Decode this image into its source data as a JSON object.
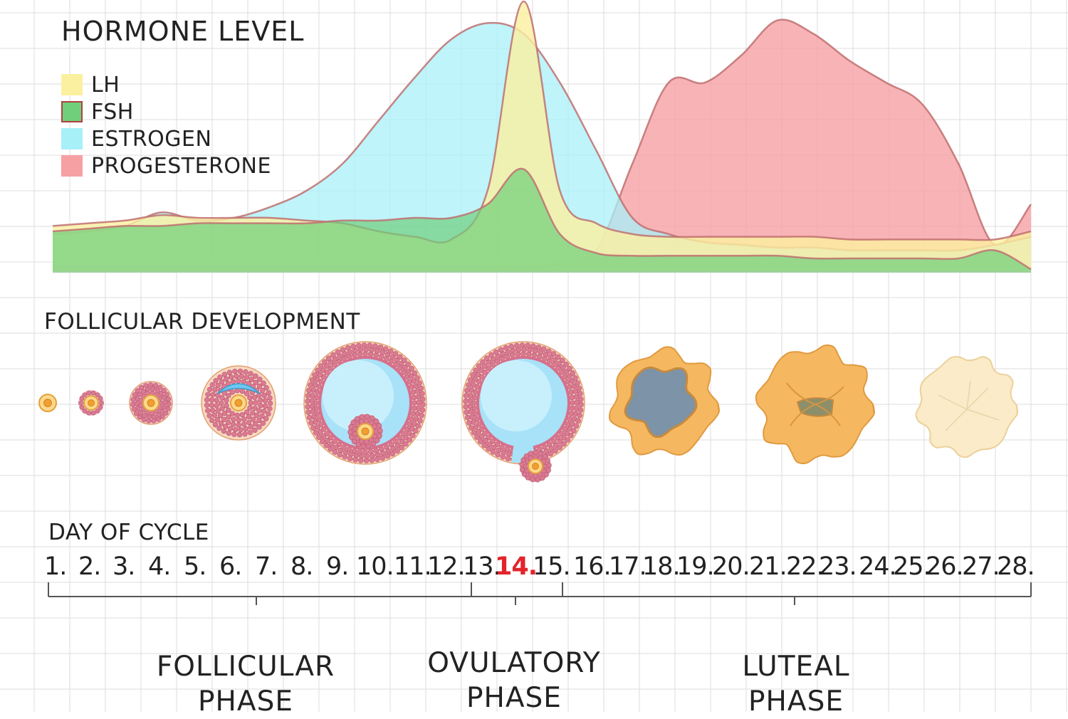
{
  "title": "HORMONE LEVEL",
  "legend": [
    {
      "label": "LH",
      "color": "#fbf0a0",
      "border": "#fbf0a0"
    },
    {
      "label": "FSH",
      "color": "#6fcf7a",
      "border": "#b04040"
    },
    {
      "label": "ESTROGEN",
      "color": "#a8f0f8",
      "border": "#a8f0f8"
    },
    {
      "label": "PROGESTERONE",
      "color": "#f6a0a4",
      "border": "#f6a0a4"
    }
  ],
  "colors": {
    "lh": "#fbf0a0",
    "fsh": "#6fcf7a",
    "estrogen": "#a8f0f8",
    "progesterone": "#f6a0a4",
    "outline": "#c07070",
    "highlight": "#e3242b",
    "grid": "#dddddd"
  },
  "chart_data": {
    "type": "area",
    "x": [
      1,
      2,
      3,
      4,
      5,
      6,
      7,
      8,
      9,
      10,
      11,
      12,
      13,
      14,
      15,
      16,
      17,
      18,
      19,
      20,
      21,
      22,
      23,
      24,
      25,
      26,
      27,
      28
    ],
    "series": [
      {
        "name": "LH",
        "values": [
          17,
          18,
          19,
          21,
          20,
          20,
          20,
          19,
          18,
          15,
          13,
          12,
          30,
          100,
          30,
          18,
          14,
          13,
          13,
          13,
          13,
          13,
          12,
          12,
          12,
          12,
          12,
          15
        ]
      },
      {
        "name": "FSH",
        "values": [
          15,
          16,
          17,
          17,
          18,
          18,
          18,
          18,
          19,
          19,
          20,
          20,
          25,
          38,
          14,
          7,
          6,
          6,
          6,
          6,
          6,
          5,
          5,
          5,
          5,
          5,
          8,
          1
        ]
      },
      {
        "name": "ESTROGEN",
        "values": [
          14,
          15,
          17,
          22,
          19,
          20,
          24,
          30,
          40,
          56,
          72,
          86,
          92,
          88,
          70,
          45,
          20,
          14,
          11,
          10,
          9,
          9,
          8,
          8,
          8,
          8,
          10,
          13
        ]
      },
      {
        "name": "PROGESTERONE",
        "values": [
          2,
          2,
          2,
          2,
          2,
          2,
          2,
          2,
          2,
          2,
          2,
          2,
          2,
          2,
          3,
          8,
          40,
          70,
          70,
          80,
          93,
          88,
          78,
          70,
          62,
          40,
          10,
          25
        ]
      }
    ],
    "xlim": [
      1,
      28
    ],
    "ylim": [
      0,
      100
    ],
    "grid": true,
    "legend": "top-left"
  },
  "follicular_development": {
    "title": "FOLLICULAR DEVELOPMENT",
    "stages": [
      "primordial",
      "primary",
      "secondary",
      "early-antral",
      "antral",
      "ovulating",
      "corpus-luteum",
      "mature-corpus-luteum",
      "corpus-albicans"
    ]
  },
  "day_of_cycle": {
    "title": "DAY OF CYCLE",
    "days": [
      "1.",
      "2.",
      "3.",
      "4.",
      "5.",
      "6.",
      "7.",
      "8.",
      "9.",
      "10.",
      "11.",
      "12.",
      "13.",
      "14.",
      "15.",
      "16.",
      "17.",
      "18.",
      "19.",
      "20.",
      "21.",
      "22.",
      "23.",
      "24.",
      "25.",
      "26.",
      "27.",
      "28."
    ],
    "highlight_day": "14."
  },
  "phases": [
    {
      "line1": "FOLLICULAR",
      "line2": "PHASE"
    },
    {
      "line1": "OVULATORY",
      "line2": "PHASE"
    },
    {
      "line1": "LUTEAL",
      "line2": "PHASE"
    }
  ]
}
